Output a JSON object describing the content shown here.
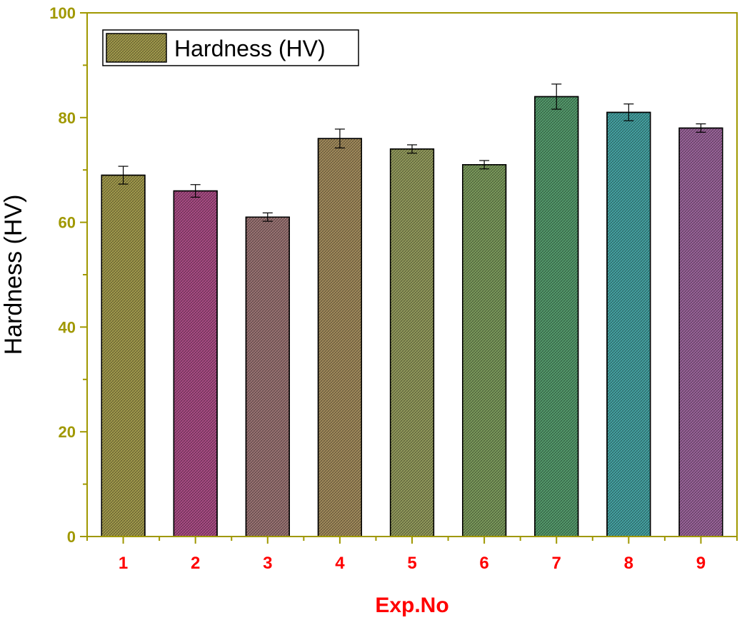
{
  "chart_data": {
    "type": "bar",
    "categories": [
      "1",
      "2",
      "3",
      "4",
      "5",
      "6",
      "7",
      "8",
      "9"
    ],
    "series": [
      {
        "name": "Hardness (HV)",
        "values": [
          69,
          66,
          61,
          76,
          74,
          71,
          84,
          81,
          78
        ],
        "errors": [
          1.7,
          1.2,
          0.8,
          1.8,
          0.8,
          0.8,
          2.4,
          1.6,
          0.8
        ]
      }
    ],
    "bar_colors": [
      "#a8a050",
      "#b0508a",
      "#a07878",
      "#a89060",
      "#98a060",
      "#80a060",
      "#58a070",
      "#48a8a8",
      "#a068a0"
    ],
    "xlabel": "Exp.No",
    "ylabel": "Hardness (HV)",
    "ylim": [
      0,
      100
    ],
    "yticks": [
      "0",
      "20",
      "40",
      "60",
      "80",
      "100"
    ],
    "legend_position": "top-left",
    "grid": false,
    "axis_color": "#a09800",
    "tick_label_color_y": "#a09800",
    "tick_label_color_x": "#ff0000",
    "xlabel_color": "#ff0000",
    "ylabel_color": "#000000"
  }
}
